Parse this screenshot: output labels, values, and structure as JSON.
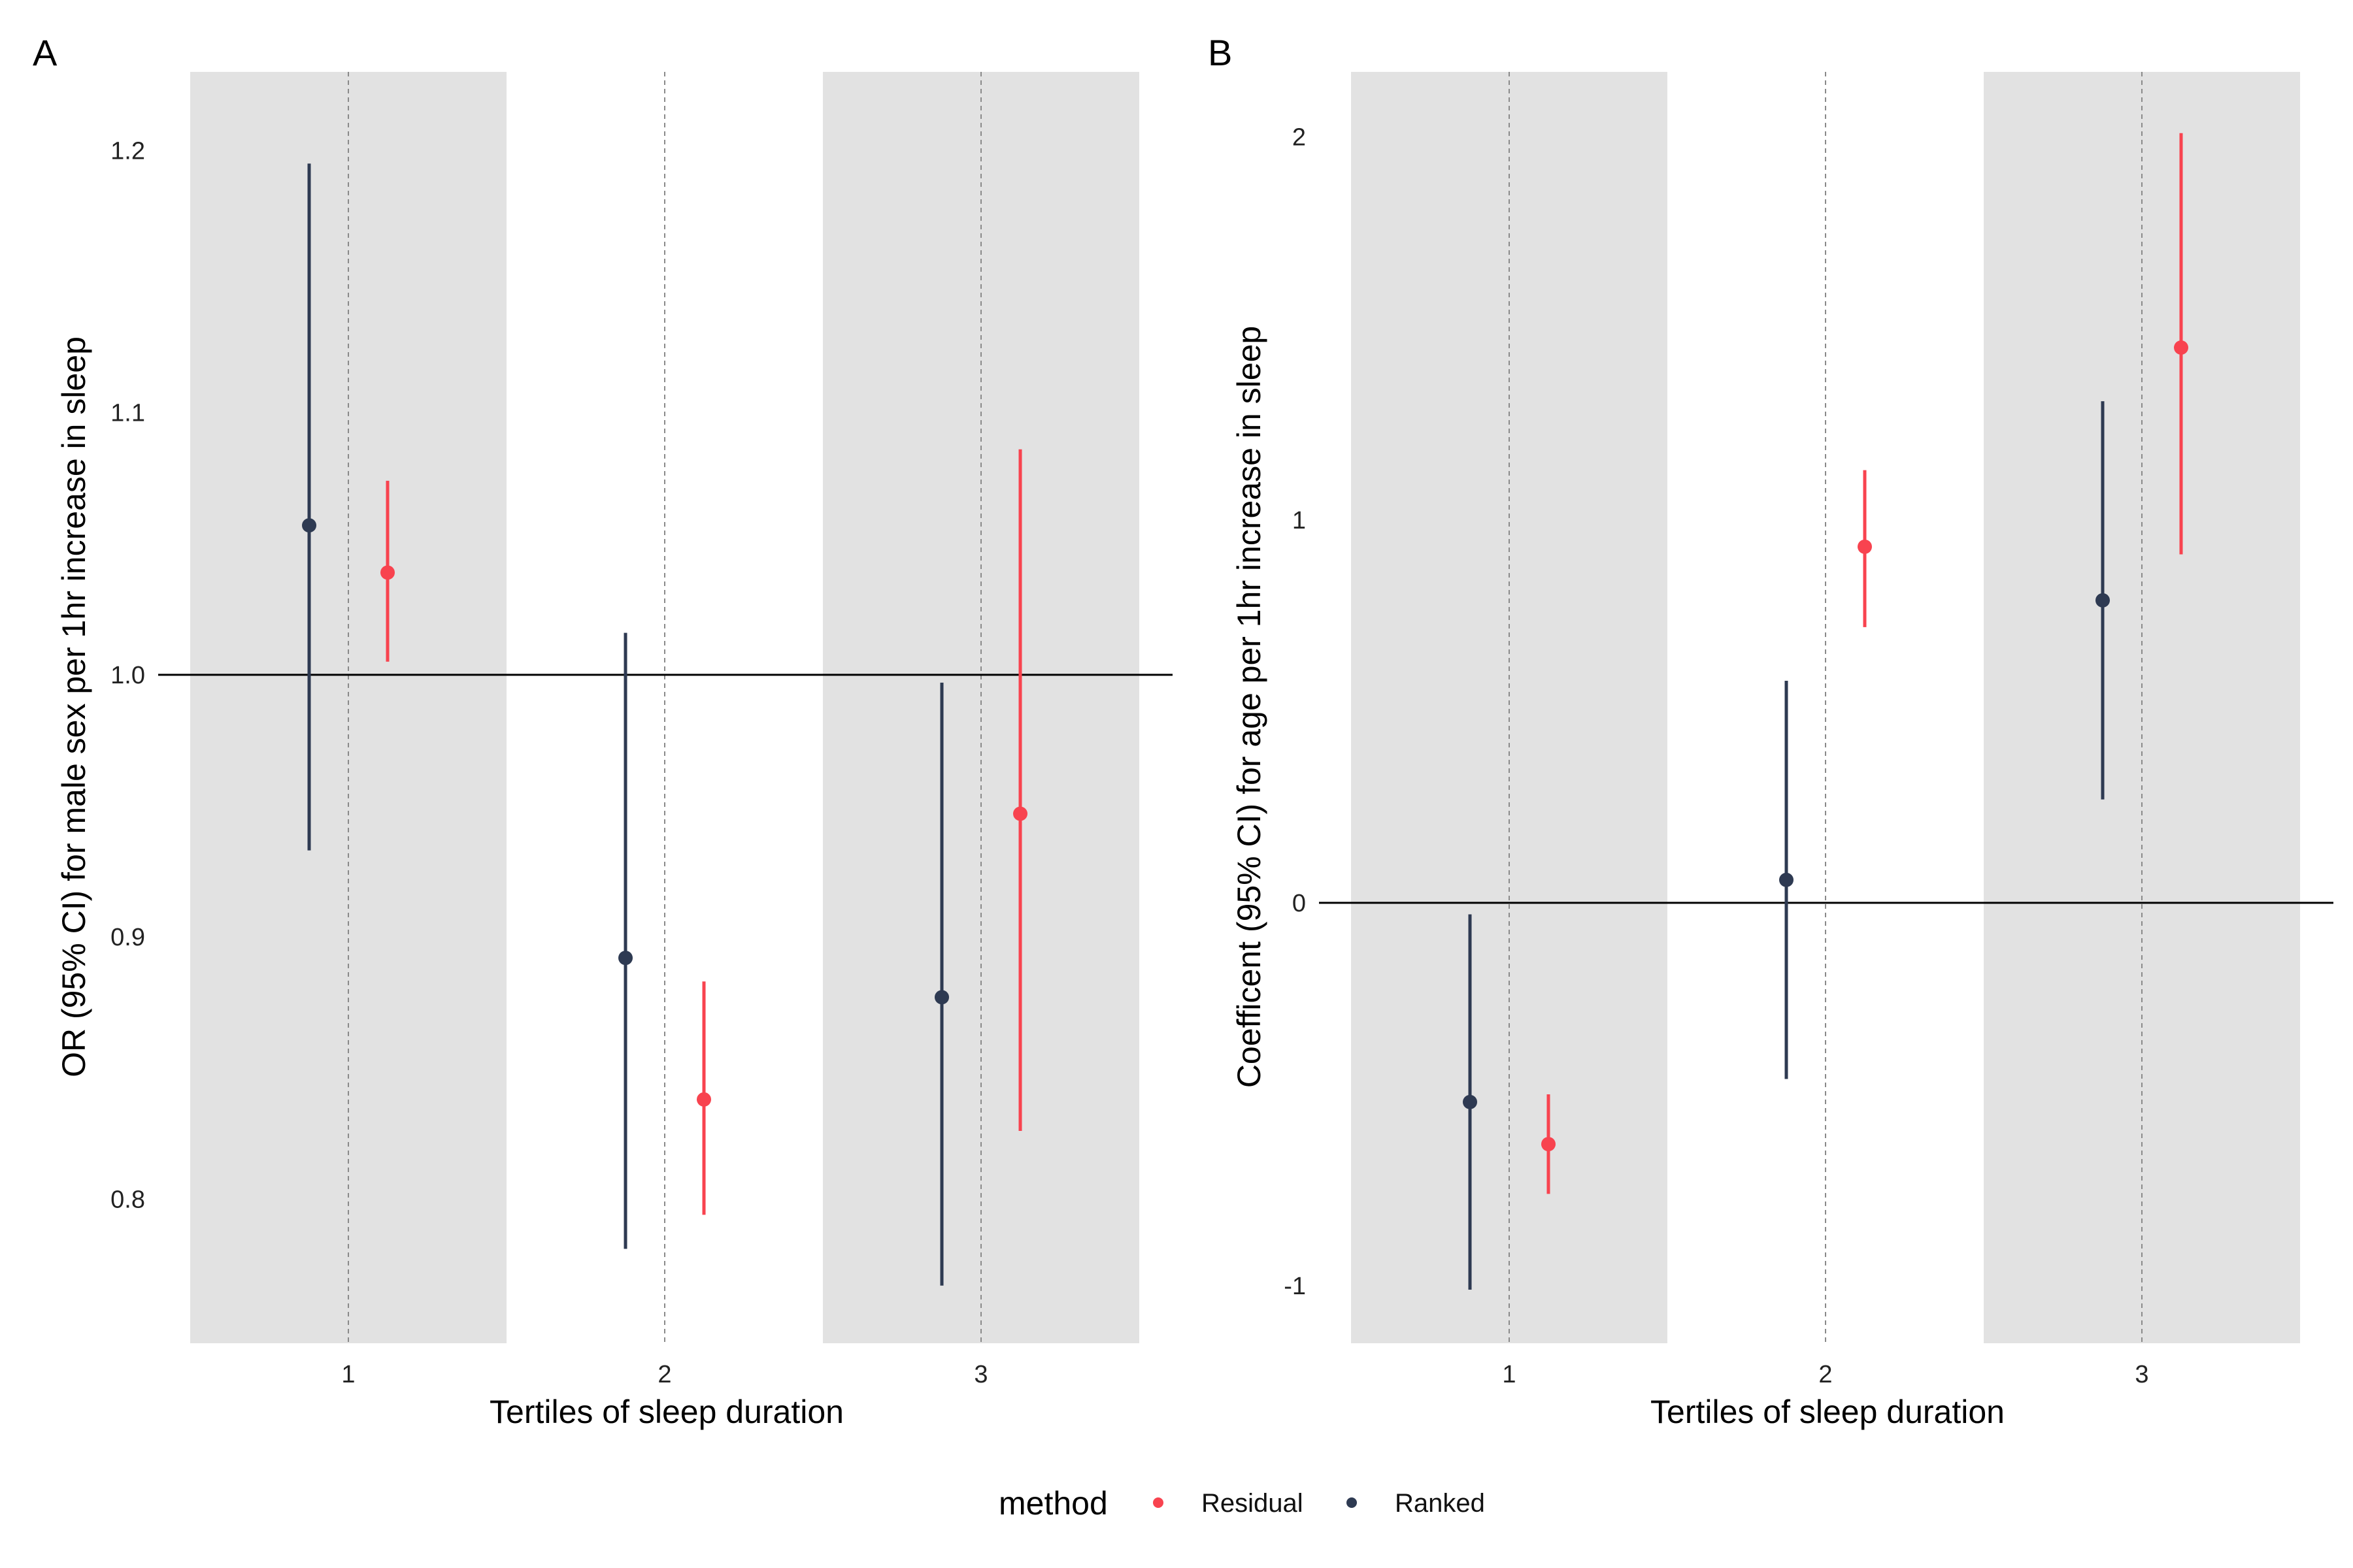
{
  "colors": {
    "residual": "#F8434F",
    "ranked": "#2E3A52",
    "band": "#E2E2E2",
    "grid": "#8A8A8A",
    "ref": "#000000"
  },
  "legend": {
    "title": "method",
    "items": [
      {
        "label": "Residual",
        "color": "#F8434F"
      },
      {
        "label": "Ranked",
        "color": "#2E3A52"
      }
    ]
  },
  "chart_data": [
    {
      "panel": "A",
      "type": "pointrange",
      "xlabel": "Tertiles of sleep duration",
      "ylabel": "OR (95% CI) for male sex per 1hr increase in sleep",
      "categories": [
        "1",
        "2",
        "3"
      ],
      "yticks": [
        0.8,
        0.9,
        1.0,
        1.1,
        1.2
      ],
      "ytick_labels": [
        "0.8",
        "0.9",
        "1.0",
        "1.1",
        "1.2"
      ],
      "ylim": [
        0.745,
        1.23
      ],
      "reference_line": 1.0,
      "shaded_categories": [
        "1",
        "3"
      ],
      "series": [
        {
          "name": "Ranked",
          "estimate": [
            1.057,
            0.892,
            0.877
          ],
          "lower": [
            0.933,
            0.781,
            0.767
          ],
          "upper": [
            1.195,
            1.016,
            0.997
          ]
        },
        {
          "name": "Residual",
          "estimate": [
            1.039,
            0.838,
            0.947
          ],
          "lower": [
            1.005,
            0.794,
            0.826
          ],
          "upper": [
            1.074,
            0.883,
            1.086
          ]
        }
      ]
    },
    {
      "panel": "B",
      "type": "pointrange",
      "xlabel": "Tertiles of sleep duration",
      "ylabel": "Coefficent (95% CI) for age per 1hr increase in sleep",
      "categories": [
        "1",
        "2",
        "3"
      ],
      "yticks": [
        -1,
        0,
        1,
        2
      ],
      "ytick_labels": [
        "-1",
        "0",
        "1",
        "2"
      ],
      "ylim": [
        -1.15,
        2.17
      ],
      "reference_line": 0,
      "shaded_categories": [
        "1",
        "3"
      ],
      "series": [
        {
          "name": "Ranked",
          "estimate": [
            -0.52,
            0.06,
            0.79
          ],
          "lower": [
            -1.01,
            -0.46,
            0.27
          ],
          "upper": [
            -0.03,
            0.58,
            1.31
          ]
        },
        {
          "name": "Residual",
          "estimate": [
            -0.63,
            0.93,
            1.45
          ],
          "lower": [
            -0.76,
            0.72,
            0.91
          ],
          "upper": [
            -0.5,
            1.13,
            2.01
          ]
        }
      ]
    }
  ]
}
